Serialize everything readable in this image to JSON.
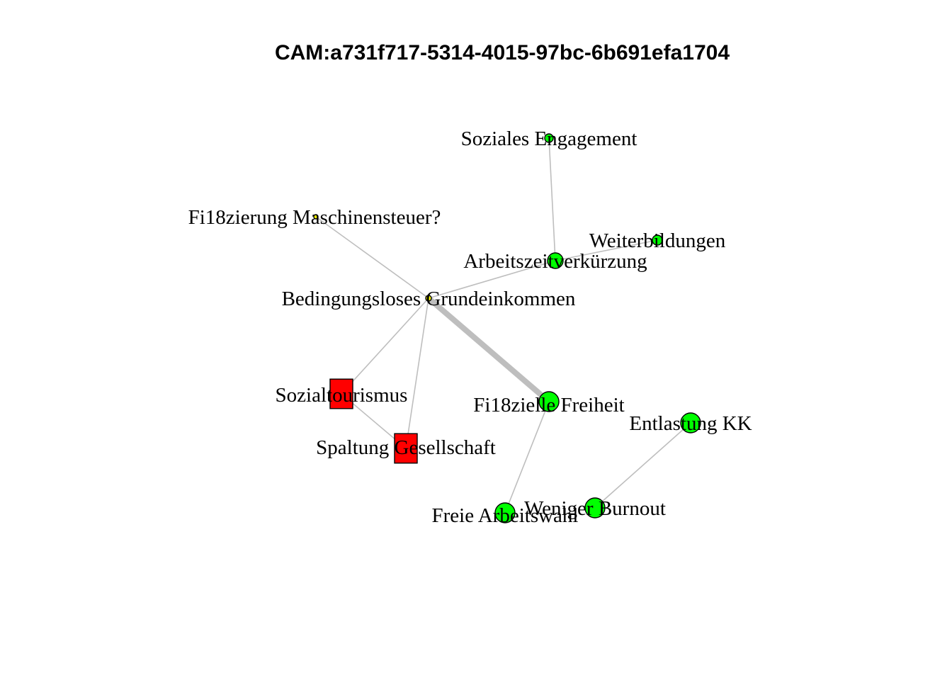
{
  "title": "CAM:a731f717-5314-4015-97bc-6b691efa1704",
  "colors": {
    "positive": "#00ff00",
    "negative": "#ff0000",
    "neutral": "#ffff00",
    "edge": "#bebebe",
    "outline": "#000000"
  },
  "nodes": [
    {
      "id": "soziales",
      "label": "Soziales Engagement",
      "shape": "circle",
      "valence": "positive"
    },
    {
      "id": "fi18zierung",
      "label": "Fi18zierung Maschinensteuer?",
      "shape": "circle",
      "valence": "neutral"
    },
    {
      "id": "weiterbildungen",
      "label": "Weiterbildungen",
      "shape": "circle",
      "valence": "positive"
    },
    {
      "id": "arbeitszeit",
      "label": "Arbeitszeitverkürzung",
      "shape": "circle",
      "valence": "positive"
    },
    {
      "id": "bge",
      "label": "Bedingungsloses Grundeinkommen",
      "shape": "circle",
      "valence": "neutral"
    },
    {
      "id": "sozialtourismus",
      "label": "Sozialtourismus",
      "shape": "square",
      "valence": "negative"
    },
    {
      "id": "fi18zielle",
      "label": "Fi18zielle Freiheit",
      "shape": "circle",
      "valence": "positive"
    },
    {
      "id": "entlastung",
      "label": "Entlastung KK",
      "shape": "circle",
      "valence": "positive"
    },
    {
      "id": "spaltung",
      "label": "Spaltung Gesellschaft",
      "shape": "square",
      "valence": "negative"
    },
    {
      "id": "burnout",
      "label": "Weniger Burnout",
      "shape": "circle",
      "valence": "positive"
    },
    {
      "id": "arbeitswahl",
      "label": "Freie Arbeitswahl",
      "shape": "circle",
      "valence": "positive"
    }
  ],
  "edges": [
    {
      "from": "soziales",
      "to": "arbeitszeit",
      "weight": 1
    },
    {
      "from": "arbeitszeit",
      "to": "weiterbildungen",
      "weight": 1
    },
    {
      "from": "arbeitszeit",
      "to": "bge",
      "weight": 1
    },
    {
      "from": "fi18zierung",
      "to": "bge",
      "weight": 1
    },
    {
      "from": "bge",
      "to": "fi18zielle",
      "weight": 5
    },
    {
      "from": "bge",
      "to": "sozialtourismus",
      "weight": 1
    },
    {
      "from": "bge",
      "to": "spaltung",
      "weight": 1
    },
    {
      "from": "sozialtourismus",
      "to": "spaltung",
      "weight": 1
    },
    {
      "from": "fi18zielle",
      "to": "arbeitswahl",
      "weight": 1
    },
    {
      "from": "entlastung",
      "to": "burnout",
      "weight": 1
    }
  ]
}
